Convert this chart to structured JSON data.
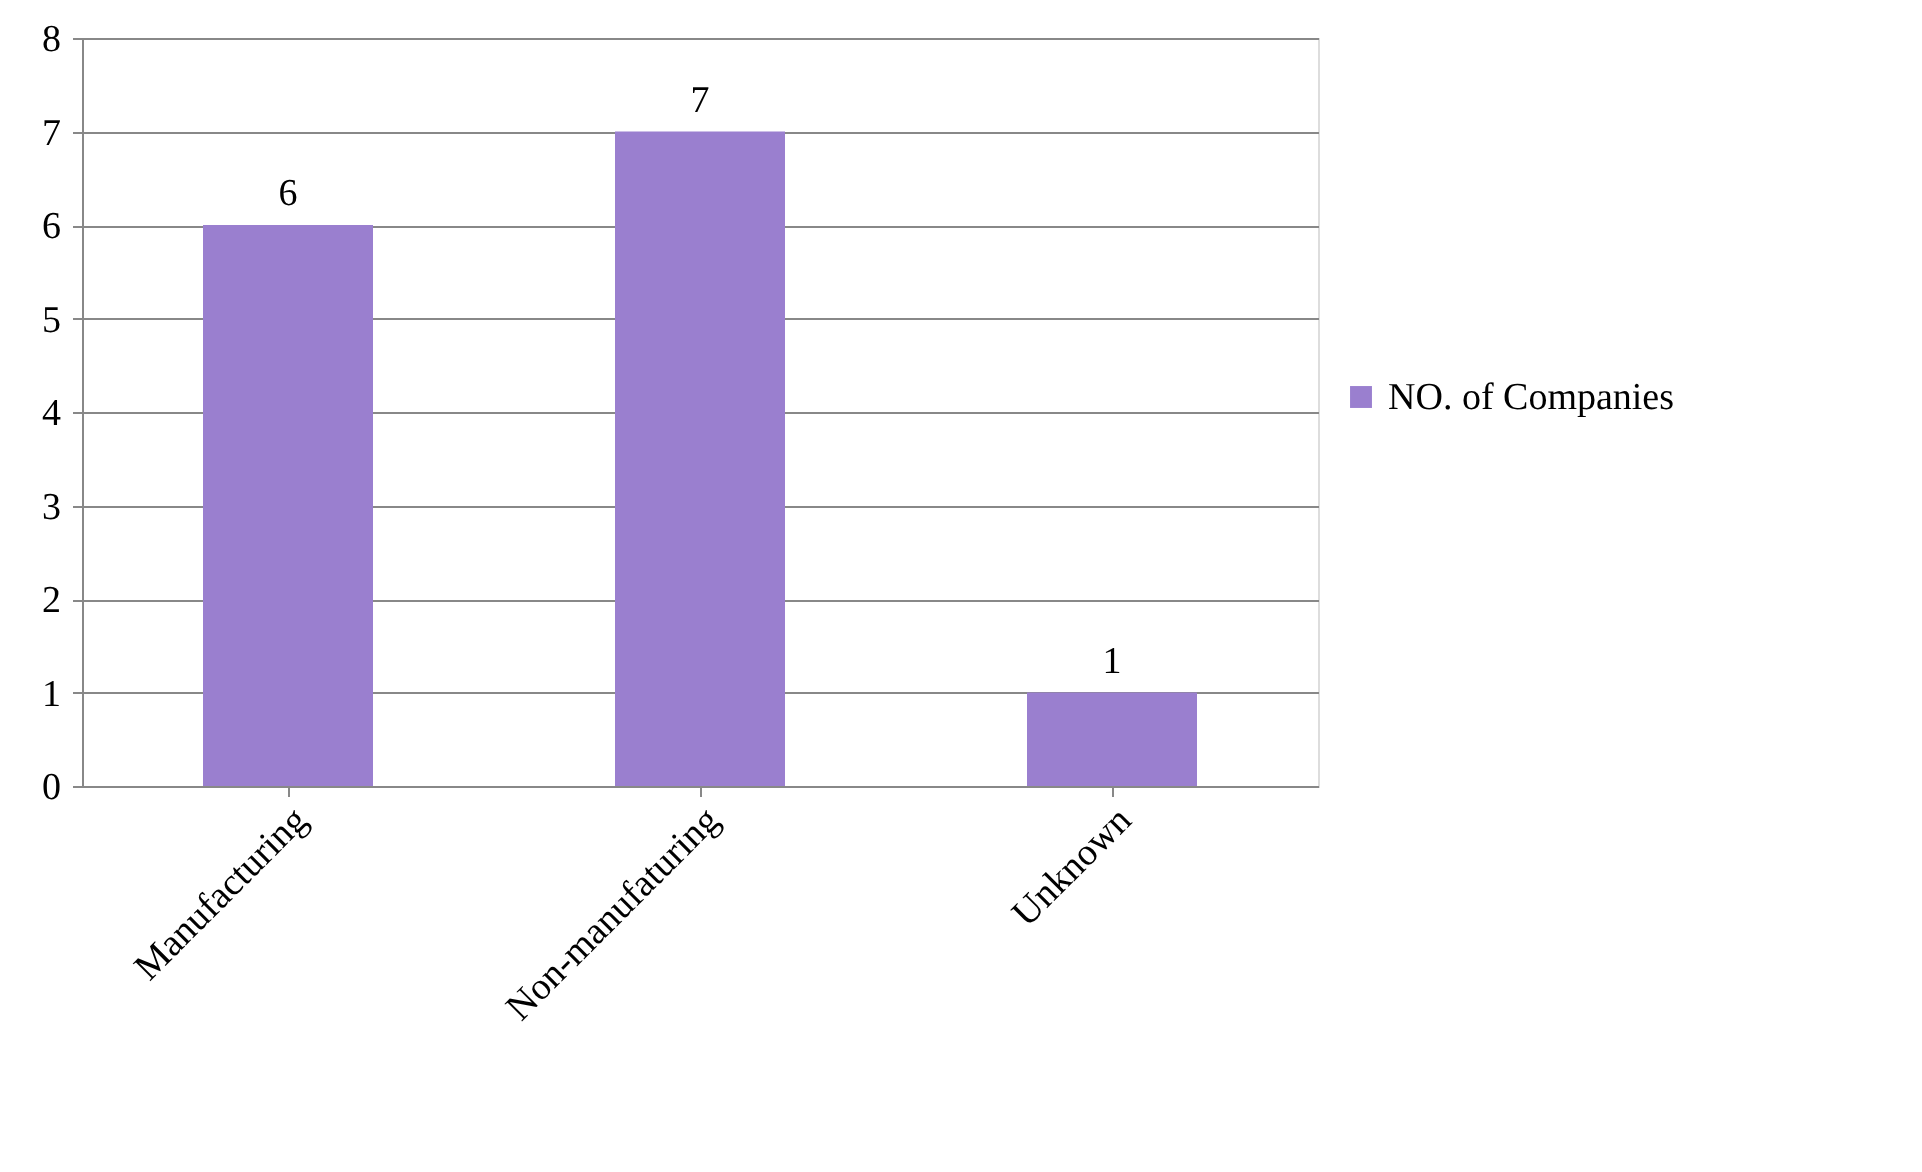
{
  "chart_data": {
    "type": "bar",
    "categories": [
      "Manufacturing",
      "Non-manufaturing",
      "Unknown"
    ],
    "series": [
      {
        "name": "NO. of Companies",
        "color": "#9a7fcf",
        "values": [
          6,
          7,
          1
        ]
      }
    ],
    "ylim": [
      0,
      8
    ],
    "yticks": [
      0,
      1,
      2,
      3,
      4,
      5,
      6,
      7,
      8
    ],
    "grid": "y",
    "legend": "right",
    "data_labels": true
  }
}
